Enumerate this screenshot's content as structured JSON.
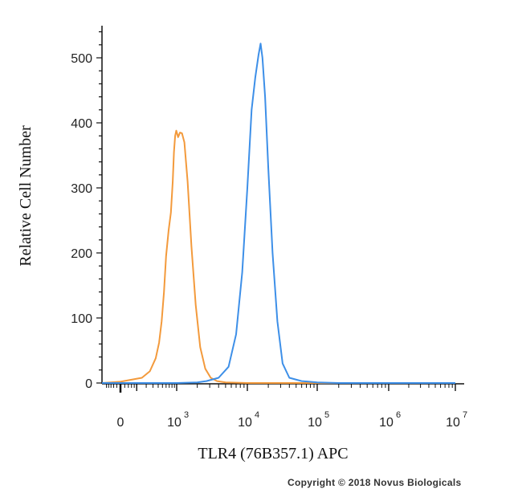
{
  "chart_data": {
    "type": "line",
    "title": "",
    "xlabel": "TLR4 (76B357.1) APC",
    "ylabel": "Relative Cell Number",
    "x_scale": "biexponential",
    "x_ticks": [
      {
        "value": 0,
        "base": "0",
        "exp": ""
      },
      {
        "value": 1000,
        "base": "10",
        "exp": "3"
      },
      {
        "value": 10000,
        "base": "10",
        "exp": "4"
      },
      {
        "value": 100000,
        "base": "10",
        "exp": "5"
      },
      {
        "value": 1000000,
        "base": "10",
        "exp": "6"
      },
      {
        "value": 10000000,
        "base": "10",
        "exp": "7"
      }
    ],
    "y_ticks": [
      0,
      100,
      200,
      300,
      400,
      500
    ],
    "ylim": [
      0,
      560
    ],
    "xlim": [
      -150,
      12000000
    ],
    "grid": false,
    "series": [
      {
        "color": "#f39a3c",
        "points": [
          [
            -150,
            0
          ],
          [
            0,
            2
          ],
          [
            150,
            8
          ],
          [
            250,
            18
          ],
          [
            350,
            38
          ],
          [
            420,
            62
          ],
          [
            480,
            95
          ],
          [
            540,
            140
          ],
          [
            600,
            195
          ],
          [
            680,
            235
          ],
          [
            760,
            262
          ],
          [
            830,
            310
          ],
          [
            880,
            355
          ],
          [
            930,
            380
          ],
          [
            980,
            388
          ],
          [
            1050,
            378
          ],
          [
            1120,
            385
          ],
          [
            1200,
            384
          ],
          [
            1300,
            370
          ],
          [
            1450,
            310
          ],
          [
            1650,
            210
          ],
          [
            1900,
            120
          ],
          [
            2200,
            55
          ],
          [
            2600,
            22
          ],
          [
            3100,
            8
          ],
          [
            3800,
            3
          ],
          [
            5000,
            1
          ],
          [
            10000,
            0
          ],
          [
            100000,
            0
          ],
          [
            10000000,
            0
          ]
        ]
      },
      {
        "color": "#3d8fe8",
        "points": [
          [
            -150,
            0
          ],
          [
            1000,
            0
          ],
          [
            2000,
            1
          ],
          [
            2700,
            3
          ],
          [
            4000,
            8
          ],
          [
            5500,
            25
          ],
          [
            7000,
            75
          ],
          [
            8500,
            170
          ],
          [
            10000,
            300
          ],
          [
            11500,
            420
          ],
          [
            13000,
            470
          ],
          [
            14500,
            505
          ],
          [
            15500,
            522
          ],
          [
            16500,
            500
          ],
          [
            18000,
            440
          ],
          [
            20000,
            330
          ],
          [
            23000,
            200
          ],
          [
            27000,
            95
          ],
          [
            32000,
            30
          ],
          [
            40000,
            8
          ],
          [
            60000,
            3
          ],
          [
            100000,
            1
          ],
          [
            200000,
            0
          ],
          [
            10000000,
            0
          ]
        ]
      }
    ]
  },
  "copyright": "Copyright © 2018 Novus Biologicals"
}
